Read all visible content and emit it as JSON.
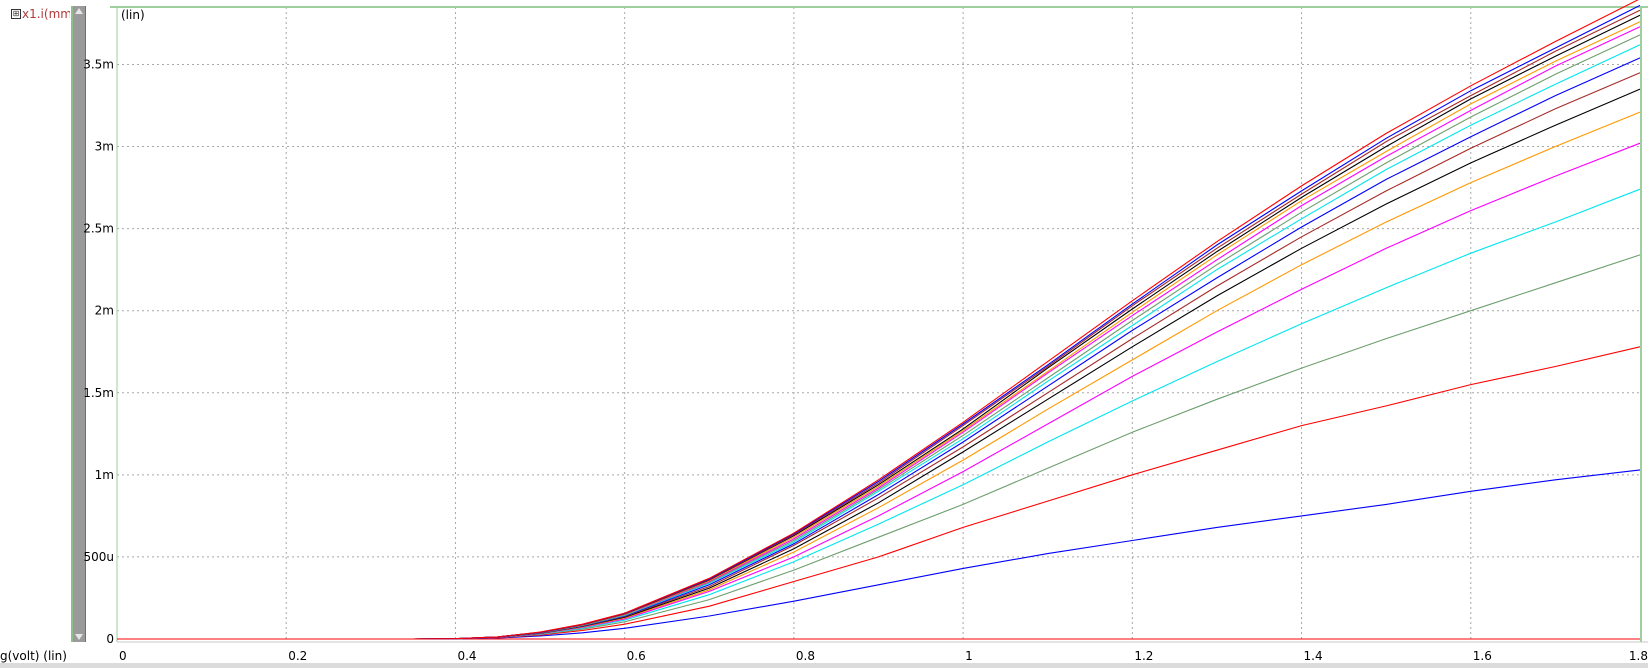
{
  "signal_list": {
    "toggle_glyph": "⊞",
    "signal_label": "x1.i(mm"
  },
  "y_unit_label": "(lin)",
  "x_title": "g(volt) (lin)",
  "chart_data": {
    "type": "line",
    "title": "",
    "xlabel": "g(volt) (lin)",
    "ylabel": "(lin)",
    "xlim": [
      0,
      1.8
    ],
    "ylim": [
      0,
      0.00385
    ],
    "grid": true,
    "x_ticks": [
      {
        "v": 0,
        "label": "0"
      },
      {
        "v": 0.2,
        "label": "0.2"
      },
      {
        "v": 0.4,
        "label": "0.4"
      },
      {
        "v": 0.6,
        "label": "0.6"
      },
      {
        "v": 0.8,
        "label": "0.8"
      },
      {
        "v": 1.0,
        "label": "1"
      },
      {
        "v": 1.2,
        "label": "1.2"
      },
      {
        "v": 1.4,
        "label": "1.4"
      },
      {
        "v": 1.6,
        "label": "1.6"
      },
      {
        "v": 1.8,
        "label": "1.8"
      }
    ],
    "y_ticks": [
      {
        "v": 0,
        "label": "0"
      },
      {
        "v": 0.0005,
        "label": "500u"
      },
      {
        "v": 0.001,
        "label": "1m"
      },
      {
        "v": 0.0015,
        "label": "1.5m"
      },
      {
        "v": 0.002,
        "label": "2m"
      },
      {
        "v": 0.0025,
        "label": "2.5m"
      },
      {
        "v": 0.003,
        "label": "3m"
      },
      {
        "v": 0.0035,
        "label": "3.5m"
      }
    ],
    "x": [
      0.35,
      0.4,
      0.45,
      0.5,
      0.55,
      0.6,
      0.7,
      0.8,
      0.9,
      1.0,
      1.1,
      1.2,
      1.3,
      1.4,
      1.5,
      1.6,
      1.7,
      1.8
    ],
    "series": [
      {
        "color": "#ff0000",
        "values": [
          0,
          0,
          0,
          0,
          0,
          0,
          0,
          0,
          0,
          0,
          0,
          0,
          0,
          0,
          0,
          0,
          0,
          0
        ]
      },
      {
        "color": "#0000ff",
        "values": [
          0,
          1e-06,
          6e-06,
          1.8e-05,
          3.8e-05,
          6.5e-05,
          0.00014,
          0.00023,
          0.00033,
          0.00043,
          0.00052,
          0.0006,
          0.00068,
          0.00075,
          0.00082,
          0.0009,
          0.00097,
          0.00103
        ]
      },
      {
        "color": "#ff0000",
        "values": [
          0,
          2e-06,
          8e-06,
          2.4e-05,
          5.2e-05,
          9e-05,
          0.0002,
          0.00035,
          0.0005,
          0.00068,
          0.00084,
          0.001,
          0.00115,
          0.0013,
          0.00142,
          0.00155,
          0.00166,
          0.00178
        ]
      },
      {
        "color": "#6e9e6e",
        "values": [
          0,
          2e-06,
          9e-06,
          2.8e-05,
          6e-05,
          0.000105,
          0.00024,
          0.00042,
          0.00062,
          0.00082,
          0.00104,
          0.00126,
          0.00146,
          0.00165,
          0.00183,
          0.002,
          0.00217,
          0.00234
        ]
      },
      {
        "color": "#00e5ee",
        "values": [
          0,
          2e-06,
          1e-05,
          3e-05,
          6.6e-05,
          0.000115,
          0.00027,
          0.00047,
          0.0007,
          0.00094,
          0.0012,
          0.00145,
          0.00169,
          0.00192,
          0.00214,
          0.00235,
          0.00254,
          0.00274
        ]
      },
      {
        "color": "#ff00ff",
        "values": [
          0,
          2e-06,
          1e-05,
          3.2e-05,
          7e-05,
          0.000122,
          0.00029,
          0.0005,
          0.00075,
          0.00102,
          0.00131,
          0.0016,
          0.00187,
          0.00213,
          0.00238,
          0.00261,
          0.00282,
          0.00302
        ]
      },
      {
        "color": "#ff9900",
        "values": [
          0,
          2e-06,
          1.1e-05,
          3.4e-05,
          7.3e-05,
          0.000128,
          0.0003,
          0.00053,
          0.0008,
          0.00109,
          0.0014,
          0.0017,
          0.002,
          0.00228,
          0.00254,
          0.00278,
          0.003,
          0.00321
        ]
      },
      {
        "color": "#000000",
        "values": [
          0,
          2e-06,
          1.1e-05,
          3.5e-05,
          7.6e-05,
          0.000133,
          0.00031,
          0.00055,
          0.00083,
          0.00114,
          0.00146,
          0.00178,
          0.00209,
          0.00238,
          0.00265,
          0.0029,
          0.00313,
          0.00335
        ]
      },
      {
        "color": "#a52a2a",
        "values": [
          0,
          2e-06,
          1.2e-05,
          3.6e-05,
          7.8e-05,
          0.000137,
          0.00032,
          0.00057,
          0.00086,
          0.00117,
          0.0015,
          0.00183,
          0.00215,
          0.00245,
          0.00273,
          0.00299,
          0.00323,
          0.00345
        ]
      },
      {
        "color": "#0000ff",
        "values": [
          0,
          2e-06,
          1.2e-05,
          3.7e-05,
          8e-05,
          0.00014,
          0.00033,
          0.00058,
          0.00088,
          0.0012,
          0.00154,
          0.00188,
          0.0022,
          0.00251,
          0.0028,
          0.00306,
          0.00331,
          0.00354
        ]
      },
      {
        "color": "#00e5ee",
        "values": [
          0,
          2e-06,
          1.2e-05,
          3.8e-05,
          8.2e-05,
          0.000143,
          0.00034,
          0.00059,
          0.0009,
          0.00122,
          0.00157,
          0.00191,
          0.00225,
          0.00256,
          0.00286,
          0.00313,
          0.00338,
          0.00362
        ]
      },
      {
        "color": "#6e9e6e",
        "values": [
          0,
          2e-06,
          1.2e-05,
          3.8e-05,
          8.3e-05,
          0.000146,
          0.000345,
          0.0006,
          0.00091,
          0.00124,
          0.00159,
          0.00194,
          0.00228,
          0.0026,
          0.0029,
          0.00318,
          0.00344,
          0.00368
        ]
      },
      {
        "color": "#ff00ff",
        "values": [
          0,
          2e-06,
          1.3e-05,
          3.9e-05,
          8.5e-05,
          0.000149,
          0.00035,
          0.00061,
          0.00092,
          0.00126,
          0.00162,
          0.00197,
          0.00231,
          0.00264,
          0.00294,
          0.00322,
          0.00349,
          0.00373
        ]
      },
      {
        "color": "#ff9900",
        "values": [
          0,
          2e-06,
          1.3e-05,
          4e-05,
          8.6e-05,
          0.000151,
          0.000355,
          0.00062,
          0.00093,
          0.00127,
          0.00163,
          0.00199,
          0.00234,
          0.00267,
          0.00297,
          0.00326,
          0.00352,
          0.00376
        ]
      },
      {
        "color": "#000000",
        "values": [
          0,
          2e-06,
          1.3e-05,
          4e-05,
          8.7e-05,
          0.000153,
          0.00036,
          0.00063,
          0.00094,
          0.00128,
          0.00165,
          0.00201,
          0.00236,
          0.00269,
          0.003,
          0.00329,
          0.00355,
          0.0038
        ]
      },
      {
        "color": "#a52a2a",
        "values": [
          0,
          2e-06,
          1.3e-05,
          4.1e-05,
          8.8e-05,
          0.000154,
          0.000363,
          0.000635,
          0.00095,
          0.0013,
          0.00166,
          0.00203,
          0.00238,
          0.00271,
          0.00303,
          0.00331,
          0.00358,
          0.00383
        ]
      },
      {
        "color": "#0000ff",
        "values": [
          0,
          2e-06,
          1.3e-05,
          4.1e-05,
          8.9e-05,
          0.000156,
          0.000366,
          0.00064,
          0.00096,
          0.00131,
          0.00167,
          0.00204,
          0.0024,
          0.00273,
          0.00305,
          0.00334,
          0.0036,
          0.00386
        ]
      },
      {
        "color": "#ff0000",
        "values": [
          0,
          2e-06,
          1.3e-05,
          4.2e-05,
          9e-05,
          0.000158,
          0.00037,
          0.000645,
          0.00097,
          0.00132,
          0.00169,
          0.00206,
          0.00242,
          0.00276,
          0.00308,
          0.00337,
          0.00364,
          0.0039
        ]
      }
    ]
  }
}
